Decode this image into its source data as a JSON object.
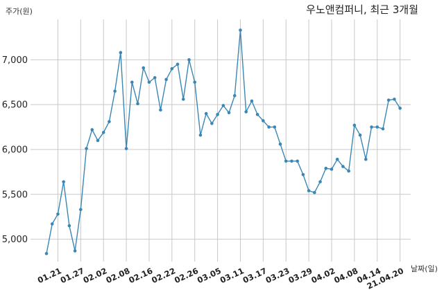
{
  "chart_data": {
    "type": "line",
    "title": "우노앤컴퍼니, 최근 3개월",
    "ylabel": "주가(원)",
    "xlabel": "날짜(일)",
    "ylim": [
      4750,
      7450
    ],
    "yticks": [
      "5,000",
      "5,500",
      "6,000",
      "6,500",
      "7,000"
    ],
    "ytick_values": [
      5000,
      5500,
      6000,
      6500,
      7000
    ],
    "xtick_labels": [
      "01.21",
      "01.27",
      "02.02",
      "02.08",
      "02.16",
      "02.22",
      "02.26",
      "03.05",
      "03.11",
      "03.17",
      "03.23",
      "03.29",
      "04.02",
      "04.08",
      "04.14",
      "21.04.20"
    ],
    "xtick_index": [
      2,
      6,
      10,
      14,
      18,
      22,
      26,
      30,
      34,
      38,
      42,
      46,
      50,
      54,
      58,
      62
    ],
    "line_color": "#3a86b4",
    "grid": true,
    "series": [
      {
        "values": [
          4840,
          5170,
          5280,
          5640,
          5150,
          4870,
          5330,
          6010,
          6220,
          6100,
          6190,
          6310,
          6650,
          7080,
          6010,
          6750,
          6510,
          6910,
          6750,
          6800,
          6440,
          6780,
          6900,
          6950,
          6560,
          7000,
          6750,
          6160,
          6400,
          6290,
          6390,
          6490,
          6410,
          6600,
          7330,
          6420,
          6540,
          6390,
          6320,
          6250,
          6250,
          6060,
          5870,
          5870,
          5870,
          5720,
          5540,
          5520,
          5640,
          5790,
          5780,
          5890,
          5810,
          5760,
          6270,
          6160,
          5890,
          6250,
          6250,
          6230,
          6550,
          6560,
          6460
        ]
      }
    ]
  }
}
